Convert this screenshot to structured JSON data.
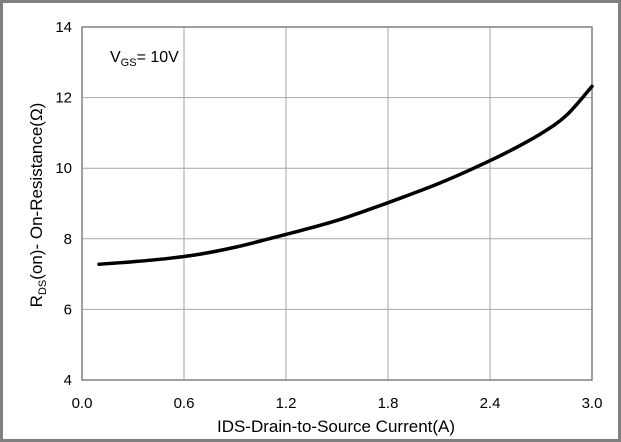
{
  "chart_data": {
    "type": "line",
    "title": "",
    "annotation": {
      "main": "V",
      "sub": "GS",
      "rest": "= 10V"
    },
    "xlabel": "IDS-Drain-to-Source  Current(A)",
    "ylabel": {
      "main": "R",
      "sub": "DS",
      "rest": "(on)- On-Resistance(Ω)"
    },
    "xlim": [
      0.0,
      3.0
    ],
    "ylim": [
      4,
      14
    ],
    "xticks": [
      0.0,
      0.6,
      1.2,
      1.8,
      2.4,
      3.0
    ],
    "xtick_labels": [
      "0.0",
      "0.6",
      "1.2",
      "1.8",
      "2.4",
      "3.0"
    ],
    "yticks": [
      4,
      6,
      8,
      10,
      12,
      14
    ],
    "ytick_labels": [
      "4",
      "6",
      "8",
      "10",
      "12",
      "14"
    ],
    "grid": true,
    "series": [
      {
        "color": "#000000",
        "x": [
          0.1,
          0.3,
          0.5,
          0.7,
          0.9,
          1.1,
          1.3,
          1.5,
          1.7,
          1.9,
          2.1,
          2.3,
          2.5,
          2.7,
          2.85,
          3.0
        ],
        "y": [
          7.28,
          7.35,
          7.44,
          7.57,
          7.76,
          8.0,
          8.25,
          8.52,
          8.85,
          9.2,
          9.57,
          9.99,
          10.45,
          10.98,
          11.5,
          12.32
        ]
      }
    ]
  }
}
